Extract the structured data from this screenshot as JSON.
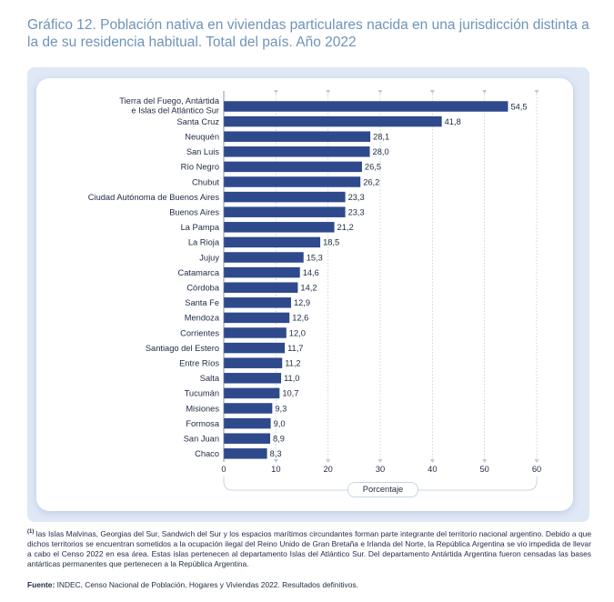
{
  "title": "Gráfico 12. Población nativa en viviendas particulares nacida en una jurisdicción distinta a la de su residencia habitual. Total del país. Año 2022",
  "footnote": {
    "marker": "(1)",
    "text": " las Islas Malvinas, Georgias del Sur, Sandwich del Sur y los espacios marítimos circundantes forman parte integrante del territorio nacional argentino. Debido a que dichos territorios se encuentran sometidos a la ocupación ilegal del Reino Unido de Gran Bretaña e Irlanda del Norte, la República Argentina se vio impedida de llevar a cabo el Censo 2022 en esa área. Estas islas pertenecen al departamento Islas del Atlántico Sur. Del departamento Antártida Argentina fueron censadas las bases antárticas permanentes que pertenecen a la República Argentina."
  },
  "source": {
    "label": "Fuente:",
    "text": " INDEC, Censo Nacional de Población, Hogares y Viviendas 2022. Resultados definitivos."
  },
  "colors": {
    "bar": "#2e4a8c",
    "title": "#6f93b9",
    "panel": "#dfe8f5",
    "grid": "#bfc8d6"
  },
  "chart_data": {
    "type": "bar",
    "orientation": "horizontal",
    "categories": [
      "Tierra del Fuego, Antártida e Islas del Atlántico Sur(1)",
      "Santa Cruz",
      "Neuquén",
      "San Luis",
      "Río Negro",
      "Chubut",
      "Ciudad Autónoma de Buenos Aires",
      "Buenos Aires",
      "La Pampa",
      "La Rioja",
      "Jujuy",
      "Catamarca",
      "Córdoba",
      "Santa Fe",
      "Mendoza",
      "Corrientes",
      "Santiago del Estero",
      "Entre Ríos",
      "Salta",
      "Tucumán",
      "Misiones",
      "Formosa",
      "San Juan",
      "Chaco"
    ],
    "category_lines": [
      [
        "Tierra del Fuego, Antártida",
        "e Islas del Atlántico Sur"
      ],
      [
        "Santa Cruz"
      ],
      [
        "Neuquén"
      ],
      [
        "San Luis"
      ],
      [
        "Río Negro"
      ],
      [
        "Chubut"
      ],
      [
        "Ciudad Autónoma de Buenos Aires"
      ],
      [
        "Buenos Aires"
      ],
      [
        "La Pampa"
      ],
      [
        "La Rioja"
      ],
      [
        "Jujuy"
      ],
      [
        "Catamarca"
      ],
      [
        "Córdoba"
      ],
      [
        "Santa Fe"
      ],
      [
        "Mendoza"
      ],
      [
        "Corrientes"
      ],
      [
        "Santiago del Estero"
      ],
      [
        "Entre Ríos"
      ],
      [
        "Salta"
      ],
      [
        "Tucumán"
      ],
      [
        "Misiones"
      ],
      [
        "Formosa"
      ],
      [
        "San Juan"
      ],
      [
        "Chaco"
      ]
    ],
    "values": [
      54.5,
      41.8,
      28.1,
      28.0,
      26.5,
      26.2,
      23.3,
      23.3,
      21.2,
      18.5,
      15.3,
      14.6,
      14.2,
      12.9,
      12.6,
      12.0,
      11.7,
      11.2,
      11.0,
      10.7,
      9.3,
      9.0,
      8.9,
      8.3
    ],
    "value_labels": [
      "54,5",
      "41,8",
      "28,1",
      "28,0",
      "26,5",
      "26,2",
      "23,3",
      "23,3",
      "21,2",
      "18,5",
      "15,3",
      "14,6",
      "14,2",
      "12,9",
      "12,6",
      "12,0",
      "11,7",
      "11,2",
      "11,0",
      "10,7",
      "9,3",
      "9,0",
      "8,9",
      "8,3"
    ],
    "xticks": [
      0,
      10,
      20,
      30,
      40,
      50,
      60
    ],
    "xlim": [
      0,
      60
    ],
    "xlabel": "Porcentaje",
    "grid": true
  }
}
